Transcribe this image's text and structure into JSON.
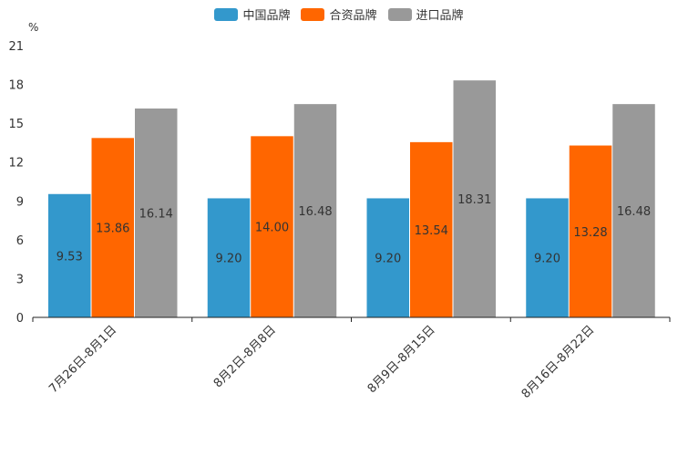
{
  "chart_data": {
    "type": "bar",
    "title": "",
    "xlabel": "",
    "ylabel": "%",
    "ylim": [
      0,
      21
    ],
    "yticks": [
      0,
      3,
      6,
      9,
      12,
      15,
      18,
      21
    ],
    "categories": [
      "7月26日-8月1日",
      "8月2日-8月8日",
      "8月9日-8月15日",
      "8月16日-8月22日"
    ],
    "series": [
      {
        "name": "中国品牌",
        "color": "#3398cc",
        "values": [
          9.53,
          9.2,
          9.2,
          9.2
        ]
      },
      {
        "name": "合资品牌",
        "color": "#ff6600",
        "values": [
          13.86,
          14.0,
          13.54,
          13.28
        ]
      },
      {
        "name": "进口品牌",
        "color": "#999999",
        "values": [
          16.14,
          16.48,
          18.31,
          16.48
        ]
      }
    ],
    "data_labels": [
      [
        "9.53",
        "9.20",
        "9.20",
        "9.20"
      ],
      [
        "13.86",
        "14.00",
        "13.54",
        "13.28"
      ],
      [
        "16.14",
        "16.48",
        "18.31",
        "16.48"
      ]
    ],
    "legend_position": "top-center",
    "grid": false
  }
}
